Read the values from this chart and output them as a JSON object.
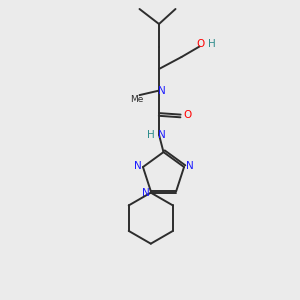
{
  "bg_color": "#ebebeb",
  "bond_color": "#2d2d2d",
  "N_color": "#1a1aff",
  "O_color": "#ff0000",
  "H_color": "#2d8c8c",
  "C_color": "#2d2d2d",
  "figsize": [
    3.0,
    3.0
  ],
  "dpi": 100,
  "xlim": [
    0,
    10
  ],
  "ylim": [
    0,
    10
  ]
}
